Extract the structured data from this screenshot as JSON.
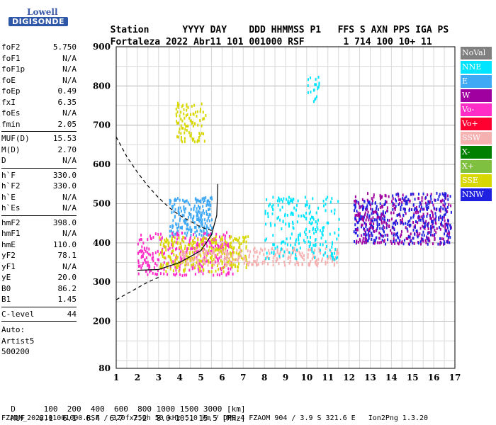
{
  "logo": {
    "line1": "Lowell",
    "line2": "DIGISONDE"
  },
  "header": {
    "row1": [
      "Station",
      "YYYY",
      "DAY",
      "DDD",
      "HHMMSS",
      "P1",
      "FFS",
      "S",
      "AXN",
      "PPS",
      "IGA",
      "PS"
    ],
    "row2": [
      "Fortaleza",
      "2022",
      "Abr11",
      "101",
      "001000",
      "RSF",
      "",
      "1",
      "714",
      "100",
      "10+",
      "11"
    ]
  },
  "params_1": [
    {
      "k": "foF2",
      "v": "5.750"
    },
    {
      "k": "foF1",
      "v": "N/A"
    },
    {
      "k": "foF1p",
      "v": "N/A"
    },
    {
      "k": "foE",
      "v": "N/A"
    },
    {
      "k": "foEp",
      "v": "0.49"
    },
    {
      "k": "fxI",
      "v": "6.35"
    },
    {
      "k": "foEs",
      "v": "N/A"
    },
    {
      "k": "fmin",
      "v": "2.05"
    }
  ],
  "params_2": [
    {
      "k": "MUF(D)",
      "v": "15.53"
    },
    {
      "k": "M(D)",
      "v": "2.70"
    },
    {
      "k": "D",
      "v": "N/A"
    }
  ],
  "params_3": [
    {
      "k": "h`F",
      "v": "330.0"
    },
    {
      "k": "h`F2",
      "v": "330.0"
    },
    {
      "k": "h`E",
      "v": "N/A"
    },
    {
      "k": "h`Es",
      "v": "N/A"
    }
  ],
  "params_4": [
    {
      "k": "hmF2",
      "v": "398.0"
    },
    {
      "k": "hmF1",
      "v": "N/A"
    },
    {
      "k": "hmE",
      "v": "110.0"
    },
    {
      "k": "yF2",
      "v": "78.1"
    },
    {
      "k": "yF1",
      "v": "N/A"
    },
    {
      "k": "yE",
      "v": "20.0"
    },
    {
      "k": "B0",
      "v": "86.2"
    },
    {
      "k": "B1",
      "v": "1.45"
    }
  ],
  "params_5": [
    {
      "k": "C-level",
      "v": "44"
    }
  ],
  "auto": [
    "Auto:",
    "Artist5",
    "500200"
  ],
  "legend": [
    {
      "label": "NoVal",
      "color": "#808080"
    },
    {
      "label": "NNE",
      "color": "#00e5ff"
    },
    {
      "label": "E",
      "color": "#3fa9f5"
    },
    {
      "label": "W",
      "color": "#a000a0"
    },
    {
      "label": "Vo-",
      "color": "#ff2cc8"
    },
    {
      "label": "Vo+",
      "color": "#ff0030"
    },
    {
      "label": "SSW",
      "color": "#f5b0b0"
    },
    {
      "label": "X-",
      "color": "#008000"
    },
    {
      "label": "X+",
      "color": "#80c040"
    },
    {
      "label": "SSE",
      "color": "#d8d800"
    },
    {
      "label": "NNW",
      "color": "#2020e0"
    }
  ],
  "bottom": {
    "d_row": [
      "D",
      "100",
      "200",
      "400",
      "600",
      "800",
      "1000",
      "1500",
      "3000",
      "[km]"
    ],
    "muf_row": [
      "MUF",
      "6.1",
      "6.1",
      "6.4",
      "6.7",
      "7.2",
      "8.0",
      "10.1",
      "15.5",
      "[MHz]"
    ],
    "footer": "FZAOM_2022101001000.RSF / 320fx256h 50 kHz 5.0 km / DPS-4 FZAOM 904 / 3.9 S 321.6 E   Ion2Png 1.3.20"
  },
  "chart_data": {
    "type": "scatter",
    "xlim": [
      1,
      17
    ],
    "ylim": [
      80,
      900
    ],
    "x_ticks": [
      1,
      2,
      3,
      4,
      5,
      6,
      7,
      8,
      9,
      10,
      11,
      12,
      13,
      14,
      15,
      16,
      17
    ],
    "y_ticks": [
      80,
      200,
      300,
      400,
      500,
      600,
      700,
      800,
      900
    ],
    "grid": true,
    "legend_position": "right",
    "clusters": [
      {
        "series": "E",
        "x": [
          3.5,
          5.5
        ],
        "y": [
          420,
          520
        ],
        "n": 220
      },
      {
        "series": "Vo-",
        "x": [
          2,
          6.5
        ],
        "y": [
          320,
          430
        ],
        "n": 320
      },
      {
        "series": "SSE",
        "x": [
          3,
          7.2
        ],
        "y": [
          330,
          420
        ],
        "n": 300
      },
      {
        "series": "SSW",
        "x": [
          4,
          11.5
        ],
        "y": [
          345,
          390
        ],
        "n": 260
      },
      {
        "series": "NNW",
        "x": [
          12.2,
          13.8
        ],
        "y": [
          400,
          510
        ],
        "n": 160
      },
      {
        "series": "W",
        "x": [
          12.2,
          16.8
        ],
        "y": [
          400,
          530
        ],
        "n": 320
      },
      {
        "series": "NNW",
        "x": [
          14,
          16.8
        ],
        "y": [
          400,
          530
        ],
        "n": 200
      },
      {
        "series": "NNE",
        "x": [
          8,
          11.5
        ],
        "y": [
          360,
          520
        ],
        "n": 220
      },
      {
        "series": "SSE",
        "x": [
          3.8,
          5.2
        ],
        "y": [
          660,
          760
        ],
        "n": 90
      },
      {
        "series": "NNE",
        "x": [
          10,
          10.6
        ],
        "y": [
          760,
          830
        ],
        "n": 20
      }
    ],
    "curves": [
      {
        "name": "dashed-upper",
        "style": "dashed",
        "points": [
          [
            1,
            670
          ],
          [
            1.5,
            620
          ],
          [
            2,
            580
          ],
          [
            2.5,
            545
          ],
          [
            3,
            515
          ],
          [
            3.5,
            490
          ],
          [
            4,
            470
          ],
          [
            4.5,
            455
          ],
          [
            5,
            440
          ],
          [
            5.6,
            430
          ]
        ]
      },
      {
        "name": "dashed-lower",
        "style": "dashed",
        "points": [
          [
            1,
            255
          ],
          [
            1.5,
            270
          ],
          [
            2,
            285
          ],
          [
            2.5,
            300
          ],
          [
            3,
            312
          ]
        ]
      },
      {
        "name": "profile",
        "style": "solid",
        "points": [
          [
            2,
            330
          ],
          [
            3,
            332
          ],
          [
            4,
            350
          ],
          [
            5,
            380
          ],
          [
            5.5,
            420
          ],
          [
            5.75,
            470
          ],
          [
            5.8,
            550
          ]
        ]
      }
    ]
  }
}
